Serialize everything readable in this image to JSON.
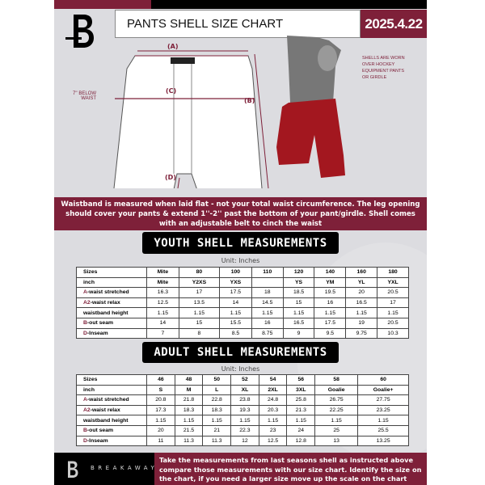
{
  "header": {
    "title": "PANTS SHELL SIZE CHART",
    "date": "2025.4.22"
  },
  "diagram": {
    "labels": {
      "a": "(A)",
      "b": "(B)",
      "c": "(C)",
      "d": "(D)"
    },
    "below_waist": "7'' BELOW WAIST",
    "note": "SHELLS ARE WORN OVER HOCKEY EQUIPMENT PANTS OR GIRDLE"
  },
  "banner": "Waistband is measured when laid flat - not your total waist circumference. The leg opening should cover your pants & extend 1''-2'' past the bottom of your pant/girdle. Shell comes with an adjustable belt to cinch the waist",
  "youth": {
    "title": "YOUTH SHELL MEASUREMENTS",
    "unit": "Unit: Inches",
    "rows": [
      {
        "label": "Sizes",
        "cells": [
          "Mite",
          "80",
          "100",
          "110",
          "120",
          "140",
          "160",
          "180"
        ]
      },
      {
        "label": "inch",
        "cells": [
          "Mite",
          "Y2XS",
          "YXS",
          "",
          "YS",
          "YM",
          "YL",
          "YXL"
        ]
      },
      {
        "prefix": "A",
        "label": "-waist stretched",
        "cells": [
          "16.3",
          "17",
          "17.5",
          "18",
          "18.5",
          "19.5",
          "20",
          "20.5"
        ]
      },
      {
        "prefix": "A2",
        "label": "-waist relax",
        "cells": [
          "12.5",
          "13.5",
          "14",
          "14.5",
          "15",
          "16",
          "16.5",
          "17"
        ]
      },
      {
        "label": "waistband height",
        "cells": [
          "1.15",
          "1.15",
          "1.15",
          "1.15",
          "1.15",
          "1.15",
          "1.15",
          "1.15"
        ]
      },
      {
        "prefix": "B",
        "label": "-out seam",
        "cells": [
          "14",
          "15",
          "15.5",
          "16",
          "16.5",
          "17.5",
          "19",
          "20.5"
        ]
      },
      {
        "prefix": "D",
        "label": "-Inseam",
        "cells": [
          "7",
          "8",
          "8.5",
          "8.75",
          "9",
          "9.5",
          "9.75",
          "10.3"
        ]
      }
    ]
  },
  "adult": {
    "title": "ADULT SHELL MEASUREMENTS",
    "unit": "Unit: Inches",
    "rows": [
      {
        "label": "Sizes",
        "cells": [
          "46",
          "48",
          "50",
          "52",
          "54",
          "56",
          "58",
          "60"
        ]
      },
      {
        "label": "inch",
        "cells": [
          "S",
          "M",
          "L",
          "XL",
          "2XL",
          "3XL",
          "Goalie",
          "Goalie+"
        ]
      },
      {
        "prefix": "A",
        "label": "-waist stretched",
        "cells": [
          "20.8",
          "21.8",
          "22.8",
          "23.8",
          "24.8",
          "25.8",
          "26.75",
          "27.75"
        ]
      },
      {
        "prefix": "A2",
        "label": "-waist relax",
        "cells": [
          "17.3",
          "18.3",
          "18.3",
          "19.3",
          "20.3",
          "21.3",
          "22.25",
          "23.25"
        ]
      },
      {
        "label": "waistband height",
        "cells": [
          "1.15",
          "1.15",
          "1.15",
          "1.15",
          "1.15",
          "1.15",
          "1.15",
          "1.15"
        ]
      },
      {
        "prefix": "B",
        "label": "-out seam",
        "cells": [
          "20",
          "21.5",
          "21",
          "22.3",
          "23",
          "24",
          "25",
          "25.5"
        ]
      },
      {
        "prefix": "D",
        "label": "-Inseam",
        "cells": [
          "11",
          "11.3",
          "11.3",
          "12",
          "12.5",
          "12.8",
          "13",
          "13.25"
        ]
      }
    ]
  },
  "footer": {
    "brand": "BREAKAWAY",
    "text": "Take the measurements from last seasons shell as instructed above compare those measurements  with our size chart. Identify the size on the chart, if you need a larger size move up the scale on the chart"
  },
  "colors": {
    "accent": "#7e2039",
    "background": "#dcdce0"
  }
}
